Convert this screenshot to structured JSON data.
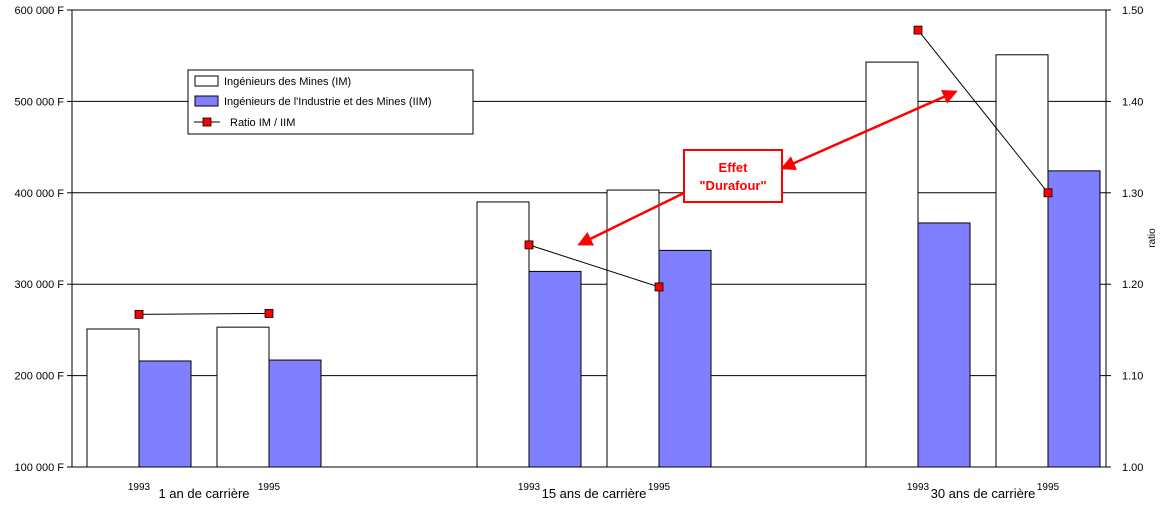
{
  "chart_data": {
    "type": "bar",
    "groups": [
      {
        "label": "1 an de carrière",
        "years": [
          "1993",
          "1995"
        ]
      },
      {
        "label": "15 ans de carrière",
        "years": [
          "1993",
          "1995"
        ]
      },
      {
        "label": "30 ans de carrière",
        "years": [
          "1993",
          "1995"
        ]
      }
    ],
    "series": [
      {
        "name": "Ingénieurs des Mines (IM)",
        "type": "bar",
        "axis": "left",
        "color": "#ffffff",
        "values": [
          251000,
          253000,
          390000,
          403000,
          543000,
          551000
        ]
      },
      {
        "name": "Ingénieurs de l'Industrie et des Mines (IIM)",
        "type": "bar",
        "axis": "left",
        "color": "#8080ff",
        "values": [
          216000,
          217000,
          314000,
          337000,
          367000,
          424000
        ]
      },
      {
        "name": "Ratio  IM / IIM",
        "type": "line",
        "axis": "right",
        "color": "#ff0000",
        "values": [
          1.167,
          1.168,
          1.243,
          1.197,
          1.478,
          1.3
        ]
      }
    ],
    "y_left": {
      "min": 100000,
      "max": 600000,
      "ticks": [
        "100 000 F",
        "200 000 F",
        "300 000 F",
        "400 000 F",
        "500 000 F",
        "600 000 F"
      ]
    },
    "y_right": {
      "label": "ratio",
      "min": 1.0,
      "max": 1.5,
      "ticks": [
        "1.00",
        "1.10",
        "1.20",
        "1.30",
        "1.40",
        "1.50"
      ]
    },
    "grid": true,
    "legend_position": "top-left",
    "annotation": {
      "lines": [
        "Effet",
        "\"Durafour\""
      ],
      "color": "#ff0000"
    }
  }
}
